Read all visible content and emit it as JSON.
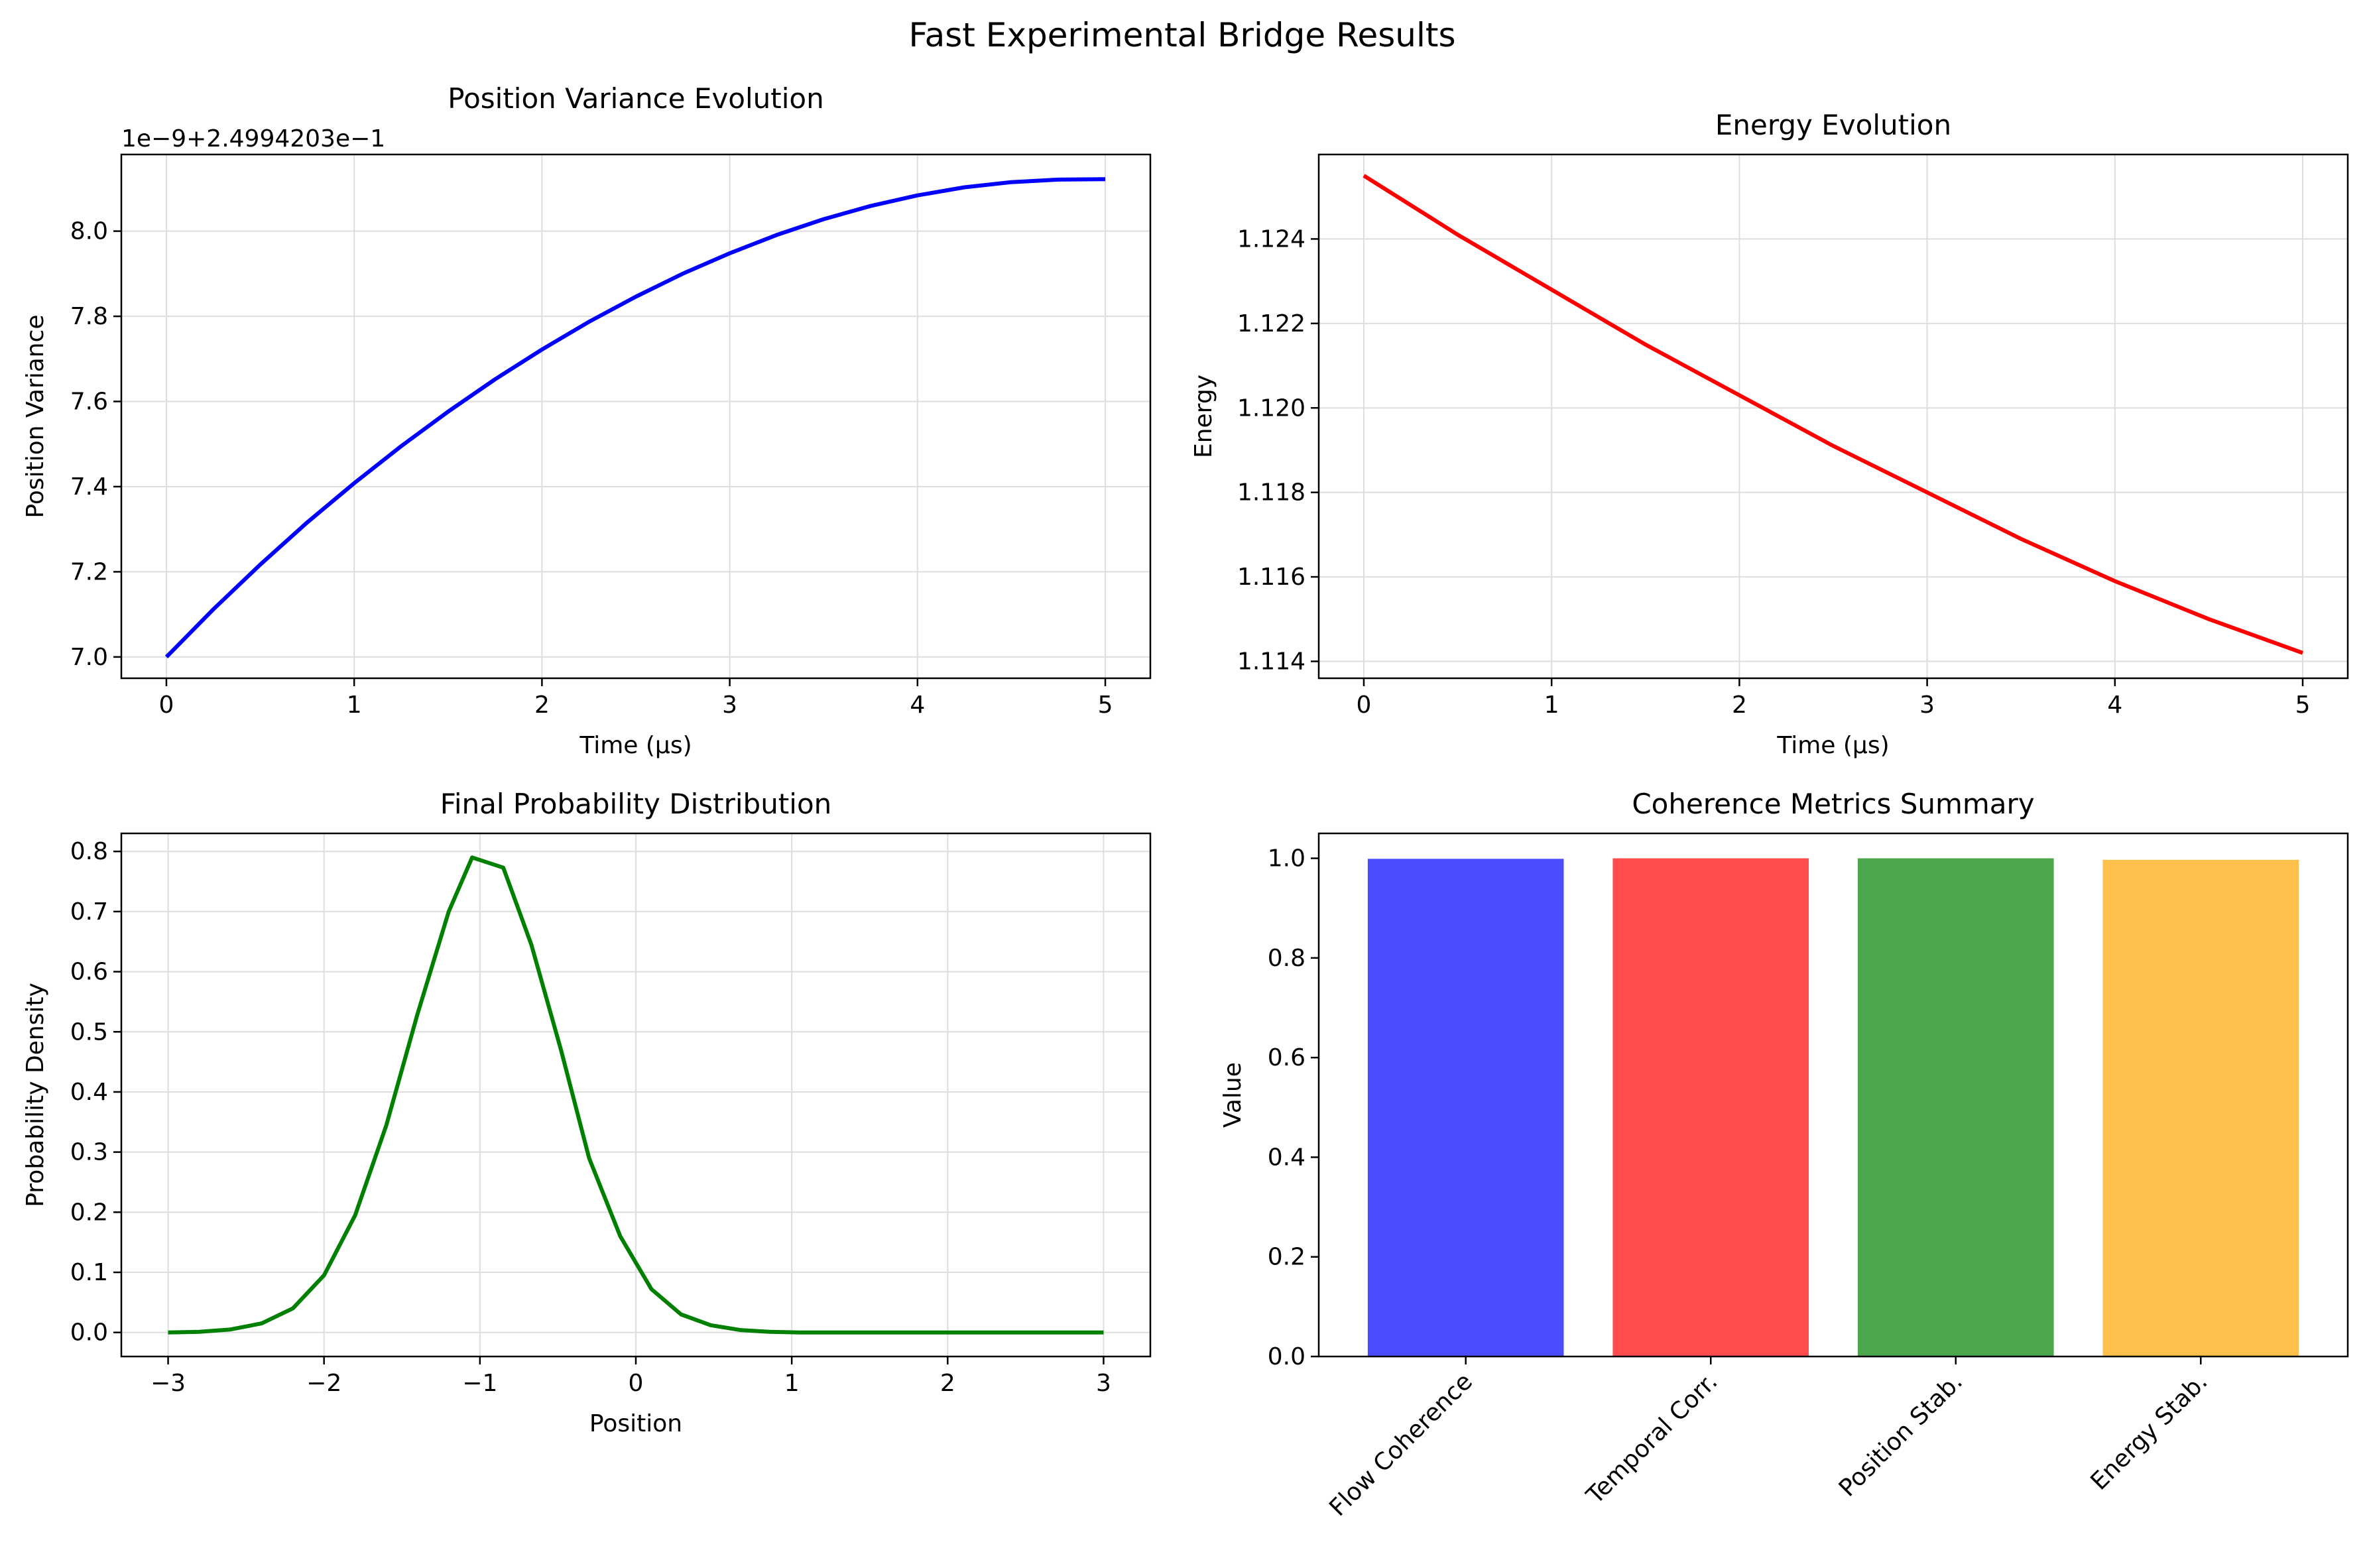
{
  "figure_title": "Fast Experimental Bridge Results",
  "chart_data": [
    {
      "id": "variance",
      "type": "line",
      "title": "Position Variance Evolution",
      "xlabel": "Time (μs)",
      "ylabel": "Position Variance",
      "offset_text": "1e−9+2.4994203e−1",
      "xlim": [
        -0.24,
        5.24
      ],
      "ylim": [
        6.95,
        8.18
      ],
      "xticks": [
        0,
        1,
        2,
        3,
        4,
        5
      ],
      "xtick_labels": [
        "0",
        "1",
        "2",
        "3",
        "4",
        "5"
      ],
      "yticks": [
        7.0,
        7.2,
        7.4,
        7.6,
        7.8,
        8.0
      ],
      "ytick_labels": [
        "7.0",
        "7.2",
        "7.4",
        "7.6",
        "7.8",
        "8.0"
      ],
      "grid": true,
      "color": "#0000ff",
      "series": [
        {
          "x": [
            0,
            0.25,
            0.5,
            0.75,
            1,
            1.25,
            1.5,
            1.75,
            2,
            2.25,
            2.5,
            2.75,
            3,
            3.25,
            3.5,
            3.75,
            4,
            4.25,
            4.5,
            4.75,
            5
          ],
          "y": [
            7.0,
            7.112,
            7.217,
            7.316,
            7.408,
            7.495,
            7.576,
            7.652,
            7.722,
            7.787,
            7.846,
            7.9,
            7.948,
            7.991,
            8.028,
            8.059,
            8.084,
            8.103,
            8.115,
            8.121,
            8.122
          ]
        }
      ]
    },
    {
      "id": "energy",
      "type": "line",
      "title": "Energy Evolution",
      "xlabel": "Time (μs)",
      "ylabel": "Energy",
      "xlim": [
        -0.24,
        5.24
      ],
      "ylim": [
        1.1136,
        1.126
      ],
      "xticks": [
        0,
        1,
        2,
        3,
        4,
        5
      ],
      "xtick_labels": [
        "0",
        "1",
        "2",
        "3",
        "4",
        "5"
      ],
      "yticks": [
        1.114,
        1.116,
        1.118,
        1.12,
        1.122,
        1.124
      ],
      "ytick_labels": [
        "1.114",
        "1.116",
        "1.118",
        "1.120",
        "1.122",
        "1.124"
      ],
      "grid": true,
      "color": "#ff0000",
      "series": [
        {
          "x": [
            0,
            0.5,
            1,
            1.5,
            2,
            2.5,
            3,
            3.5,
            4,
            4.5,
            5
          ],
          "y": [
            1.1255,
            1.1241,
            1.1228,
            1.1215,
            1.1203,
            1.1191,
            1.118,
            1.1169,
            1.1159,
            1.115,
            1.1142
          ]
        }
      ]
    },
    {
      "id": "distribution",
      "type": "line",
      "title": "Final Probability Distribution",
      "xlabel": "Position",
      "ylabel": "Probability Density",
      "xlim": [
        -3.3,
        3.3
      ],
      "ylim": [
        -0.04,
        0.83
      ],
      "xticks": [
        -3,
        -2,
        -1,
        0,
        1,
        2,
        3
      ],
      "xtick_labels": [
        "−3",
        "−2",
        "−1",
        "0",
        "1",
        "2",
        "3"
      ],
      "yticks": [
        0.0,
        0.1,
        0.2,
        0.3,
        0.4,
        0.5,
        0.6,
        0.7,
        0.8
      ],
      "ytick_labels": [
        "0.0",
        "0.1",
        "0.2",
        "0.3",
        "0.4",
        "0.5",
        "0.6",
        "0.7",
        "0.8"
      ],
      "grid": true,
      "color": "#008000",
      "series": [
        {
          "x": [
            -3.0,
            -2.8,
            -2.6,
            -2.4,
            -2.2,
            -2.0,
            -1.8,
            -1.6,
            -1.4,
            -1.2,
            -1.05,
            -0.85,
            -0.67,
            -0.48,
            -0.3,
            -0.1,
            0.1,
            0.29,
            0.48,
            0.67,
            0.86,
            1.05,
            1.5,
            2.0,
            2.5,
            3.0
          ],
          "y": [
            0.0,
            0.001,
            0.005,
            0.015,
            0.04,
            0.095,
            0.195,
            0.345,
            0.53,
            0.7,
            0.79,
            0.773,
            0.645,
            0.47,
            0.29,
            0.16,
            0.072,
            0.03,
            0.012,
            0.004,
            0.001,
            0.0,
            0.0,
            0.0,
            0.0,
            0.0
          ]
        }
      ]
    },
    {
      "id": "coherence",
      "type": "bar",
      "title": "Coherence Metrics Summary",
      "ylabel": "Value",
      "xlabel": "",
      "categories": [
        "Flow Coherence",
        "Temporal Corr.",
        "Position Stab.",
        "Energy Stab."
      ],
      "values": [
        0.999,
        1.0,
        1.0,
        0.997
      ],
      "colors": [
        "#4c4cff",
        "#ff4c4c",
        "#4ca64c",
        "#ffbf4c"
      ],
      "xlim": [
        -0.6,
        3.6
      ],
      "ylim": [
        0,
        1.05
      ],
      "yticks": [
        0.0,
        0.2,
        0.4,
        0.6,
        0.8,
        1.0
      ],
      "ytick_labels": [
        "0.0",
        "0.2",
        "0.4",
        "0.6",
        "0.8",
        "1.0"
      ],
      "grid": false
    }
  ]
}
